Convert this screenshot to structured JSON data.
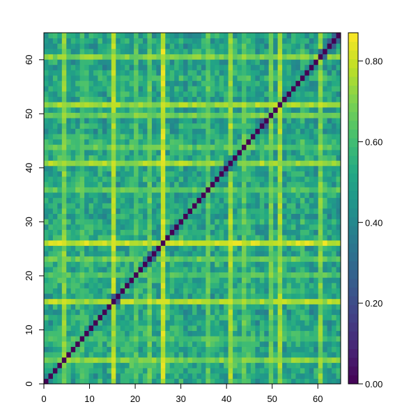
{
  "chart_data": {
    "type": "heatmap",
    "title": "",
    "xlabel": "",
    "ylabel": "",
    "n": 66,
    "xlim": [
      0,
      65
    ],
    "ylim": [
      0,
      65
    ],
    "x_ticks": [
      0,
      10,
      20,
      30,
      40,
      50,
      60
    ],
    "y_ticks": [
      0,
      10,
      20,
      30,
      40,
      50,
      60
    ],
    "x_tick_labels": [
      "0",
      "10",
      "20",
      "30",
      "40",
      "50",
      "60"
    ],
    "y_tick_labels": [
      "0",
      "10",
      "20",
      "30",
      "40",
      "50",
      "60"
    ],
    "value_range": [
      0.0,
      0.87
    ],
    "diagonal_value": 0.0,
    "bright_lines": [
      {
        "index": 15,
        "value": 0.82
      },
      {
        "index": 52,
        "value": 0.8
      },
      {
        "index": 4,
        "value": 0.76
      },
      {
        "index": 41,
        "value": 0.8
      },
      {
        "index": 50,
        "value": 0.74
      },
      {
        "index": 61,
        "value": 0.76
      },
      {
        "index": 23,
        "value": 0.72
      },
      {
        "index": 36,
        "value": 0.7
      },
      {
        "index": 44,
        "value": 0.7
      },
      {
        "index": 20,
        "value": 0.68
      },
      {
        "index": 8,
        "value": 0.66
      },
      {
        "index": 26,
        "value": 0.86
      }
    ],
    "colorbar": {
      "colormap": "viridis",
      "min": 0.0,
      "max": 0.87,
      "ticks": [
        0.0,
        0.2,
        0.4,
        0.6,
        0.8
      ],
      "tick_labels": [
        "0.00",
        "0.20",
        "0.40",
        "0.60",
        "0.80"
      ]
    },
    "grid": false,
    "legend": "colorbar-right"
  }
}
